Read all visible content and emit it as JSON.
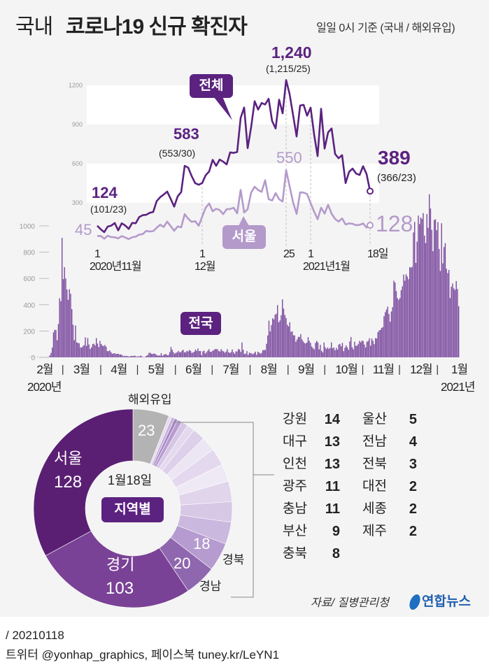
{
  "header": {
    "title_light": "국내",
    "title_bold": "코로나19 신규 확진자",
    "subtitle": "일일 0시 기준 (국내 / 해외유입)"
  },
  "colors": {
    "dark": "#5b2280",
    "light": "#b49acb",
    "bar": "#7b4a9e",
    "gray": "#b3b3b3",
    "bg": "#f4f4f4"
  },
  "chart_data": [
    {
      "type": "line",
      "start_date": "2020-11-01",
      "ylim": [
        0,
        1300
      ],
      "yticks": [
        300,
        600,
        900,
        1200
      ],
      "series": [
        {
          "name": "전체",
          "values": [
            124,
            97,
            75,
            118,
            125,
            145,
            89,
            143,
            126,
            100,
            146,
            143,
            191,
            205,
            208,
            223,
            230,
            313,
            343,
            363,
            386,
            330,
            271,
            349,
            382,
            583,
            569,
            504,
            450,
            438,
            451,
            511,
            540,
            629,
            583,
            631,
            615,
            594,
            686,
            682,
            689,
            950,
            1030,
            718,
            880,
            1078,
            1014,
            1064,
            1053,
            1097,
            926,
            869,
            1090,
            985,
            1240,
            1132,
            970,
            808,
            1045,
            1050,
            967,
            1029,
            824,
            657,
            1020,
            715,
            839,
            869,
            674,
            641,
            665,
            451,
            537,
            562,
            524,
            513,
            580,
            520,
            389
          ]
        },
        {
          "name": "서울",
          "values": [
            45,
            46,
            25,
            48,
            37,
            36,
            27,
            45,
            34,
            22,
            36,
            41,
            56,
            60,
            85,
            80,
            83,
            109,
            132,
            115,
            156,
            121,
            86,
            119,
            112,
            213,
            178,
            154,
            159,
            124,
            193,
            262,
            295,
            235,
            254,
            244,
            213,
            251,
            252,
            262,
            219,
            399,
            225,
            251,
            378,
            423,
            398,
            384,
            473,
            328,
            317,
            374,
            327,
            310,
            550,
            425,
            302,
            215,
            380,
            378,
            367,
            298,
            233,
            174,
            262,
            217,
            285,
            217,
            176,
            156,
            180,
            134,
            142,
            139,
            128,
            131,
            142,
            110,
            128
          ]
        }
      ],
      "xticks": [
        {
          "day": 0,
          "label": "1",
          "sub": "2020년11월"
        },
        {
          "day": 30,
          "label": "1",
          "sub": "12월"
        },
        {
          "day": 54,
          "label": "25",
          "sub": ""
        },
        {
          "day": 61,
          "label": "1",
          "sub": "2021년1월"
        },
        {
          "day": 78,
          "label": "18일",
          "sub": ""
        }
      ],
      "annotations": {
        "first_total": "124",
        "first_split": "(101/23)",
        "mid_total": "583",
        "mid_split": "(553/30)",
        "peak_total": "1,240",
        "peak_split": "(1,215/25)",
        "last_total": "389",
        "last_split": "(366/23)",
        "seoul_first": "45",
        "seoul_peak": "550",
        "seoul_last": "128",
        "label_total": "전체",
        "label_seoul": "서울"
      }
    },
    {
      "type": "bar",
      "name": "전국",
      "start_date": "2020-02-01",
      "ylim": [
        0,
        1000
      ],
      "yticks": [
        "0",
        "200",
        "400",
        "600",
        "800",
        "1000"
      ],
      "months": [
        {
          "label": "2월",
          "values": [
            0,
            1,
            1,
            0,
            1,
            1,
            1,
            0,
            3,
            0,
            0,
            1,
            0,
            0,
            0,
            0,
            1,
            1,
            15,
            34,
            74,
            190,
            210,
            207,
            130,
            253,
            449,
            427,
            909
          ]
        },
        {
          "label": "3월",
          "values": [
            595,
            686,
            600,
            516,
            438,
            518,
            483,
            367,
            248,
            131,
            242,
            114,
            110,
            107,
            76,
            74,
            84,
            93,
            152,
            87,
            147,
            98,
            64,
            76,
            100,
            104,
            91,
            146,
            105,
            78,
            125
          ]
        },
        {
          "label": "4월",
          "values": [
            101,
            89,
            86,
            94,
            81,
            47,
            47,
            53,
            39,
            27,
            30,
            32,
            25,
            27,
            27,
            22,
            22,
            18,
            8,
            13,
            9,
            11,
            8,
            6,
            10,
            10,
            10,
            14,
            9,
            4
          ]
        },
        {
          "label": "5월",
          "values": [
            9,
            6,
            13,
            8,
            3,
            2,
            4,
            12,
            18,
            34,
            35,
            27,
            26,
            29,
            27,
            19,
            13,
            15,
            13,
            32,
            12,
            20,
            23,
            25,
            16,
            19,
            40,
            79,
            58,
            39,
            27
          ]
        },
        {
          "label": "6월",
          "values": [
            35,
            38,
            49,
            39,
            39,
            51,
            57,
            38,
            38,
            50,
            45,
            56,
            49,
            34,
            37,
            43,
            59,
            49,
            67,
            48,
            48,
            17,
            46,
            51,
            28,
            39,
            51,
            62,
            42,
            42
          ]
        },
        {
          "label": "7월",
          "values": [
            51,
            54,
            63,
            63,
            61,
            48,
            44,
            62,
            50,
            45,
            35,
            44,
            62,
            39,
            33,
            39,
            60,
            39,
            26,
            45,
            45,
            63,
            59,
            41,
            113,
            58,
            25,
            28,
            48,
            18,
            36
          ]
        },
        {
          "label": "8월",
          "values": [
            31,
            30,
            23,
            33,
            43,
            20,
            43,
            36,
            28,
            34,
            54,
            56,
            56,
            103,
            166,
            279,
            197,
            246,
            297,
            288,
            324,
            332,
            397,
            266,
            280,
            320,
            441,
            371,
            323,
            299,
            248
          ]
        },
        {
          "label": "9월",
          "values": [
            235,
            267,
            195,
            198,
            168,
            167,
            119,
            136,
            156,
            155,
            176,
            136,
            121,
            109,
            106,
            113,
            153,
            126,
            110,
            82,
            70,
            61,
            110,
            125,
            114,
            61,
            95,
            50,
            38,
            113
          ]
        },
        {
          "label": "10월",
          "values": [
            77,
            63,
            75,
            64,
            73,
            114,
            69,
            75,
            54,
            72,
            58,
            97,
            102,
            84,
            110,
            47,
            73,
            91,
            76,
            58,
            121,
            155,
            77,
            61,
            119,
            88,
            88,
            103,
            125,
            114,
            127
          ]
        },
        {
          "label": "11월",
          "values": [
            124,
            97,
            75,
            118,
            125,
            145,
            89,
            143,
            126,
            100,
            146,
            143,
            191,
            205,
            208,
            223,
            230,
            313,
            343,
            363,
            386,
            330,
            271,
            349,
            382,
            583,
            569,
            504,
            450,
            438
          ]
        },
        {
          "label": "12월",
          "values": [
            451,
            511,
            540,
            629,
            583,
            631,
            615,
            594,
            686,
            682,
            689,
            950,
            1030,
            718,
            880,
            1078,
            1014,
            1064,
            1053,
            1097,
            926,
            869,
            1090,
            985,
            1240,
            1132,
            970,
            808,
            1045,
            1050,
            967
          ]
        },
        {
          "label": "1월",
          "values": [
            1029,
            824,
            657,
            1020,
            715,
            839,
            869,
            674,
            641,
            665,
            451,
            537,
            562,
            524,
            513,
            580,
            520,
            389
          ]
        }
      ],
      "year_start": "2020년",
      "year_end": "2021년"
    },
    {
      "type": "pie",
      "title": "1월18일",
      "badge": "지역별",
      "slices": [
        {
          "name": "해외유입",
          "value": 23,
          "color": "#b3b3b3"
        },
        {
          "name": "제주",
          "value": 2,
          "color": "#e6dcef"
        },
        {
          "name": "세종",
          "value": 2,
          "color": "#c9b4dc"
        },
        {
          "name": "대전",
          "value": 2,
          "color": "#a886c4"
        },
        {
          "name": "전북",
          "value": 3,
          "color": "#b79cd0"
        },
        {
          "name": "전남",
          "value": 4,
          "color": "#d6c6e5"
        },
        {
          "name": "울산",
          "value": 5,
          "color": "#e4d9ee"
        },
        {
          "name": "충북",
          "value": 8,
          "color": "#ddd0ea"
        },
        {
          "name": "부산",
          "value": 9,
          "color": "#ece5f3"
        },
        {
          "name": "충남",
          "value": 11,
          "color": "#e3d8ed"
        },
        {
          "name": "광주",
          "value": 11,
          "color": "#efe9f5"
        },
        {
          "name": "인천",
          "value": 13,
          "color": "#e1d5ec"
        },
        {
          "name": "대구",
          "value": 13,
          "color": "#d7c8e6"
        },
        {
          "name": "강원",
          "value": 14,
          "color": "#cbb8de"
        },
        {
          "name": "경북",
          "value": 18,
          "color": "#b59bcf"
        },
        {
          "name": "경남",
          "value": 20,
          "color": "#8f67ae"
        },
        {
          "name": "경기",
          "value": 103,
          "color": "#7a4296"
        },
        {
          "name": "서울",
          "value": 128,
          "color": "#5a1f73"
        }
      ],
      "labels": {
        "overseas_name": "해외유입",
        "overseas": "23",
        "seoul_name": "서울",
        "seoul": "128",
        "gyeonggi_name": "경기",
        "gyeonggi": "103",
        "gyeongnam_name": "경남",
        "gyeongnam": "20",
        "gyeongbuk_name": "경북",
        "gyeongbuk": "18"
      },
      "legend": [
        {
          "name": "강원",
          "value": "14"
        },
        {
          "name": "대구",
          "value": "13"
        },
        {
          "name": "인천",
          "value": "13"
        },
        {
          "name": "광주",
          "value": "11"
        },
        {
          "name": "충남",
          "value": "11"
        },
        {
          "name": "부산",
          "value": "9"
        },
        {
          "name": "충북",
          "value": "8"
        },
        {
          "name": "울산",
          "value": "5"
        },
        {
          "name": "전남",
          "value": "4"
        },
        {
          "name": "전북",
          "value": "3"
        },
        {
          "name": "대전",
          "value": "2"
        },
        {
          "name": "세종",
          "value": "2"
        },
        {
          "name": "제주",
          "value": "2"
        }
      ]
    }
  ],
  "source": "자료/ 질병관리청",
  "logo": "연합뉴스",
  "footer": {
    "date": "/ 20210118",
    "social": "트위터 @yonhap_graphics, 페이스북 tuney.kr/LeYN1"
  }
}
